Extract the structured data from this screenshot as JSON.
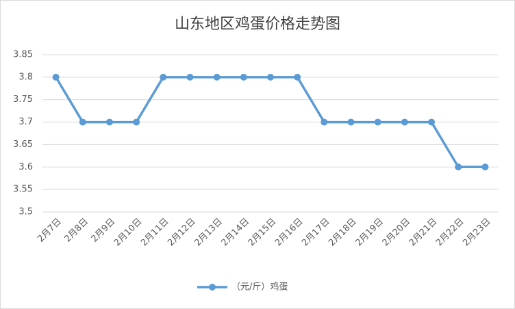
{
  "chart_data": {
    "type": "line",
    "title": "山东地区鸡蛋价格走势图",
    "categories": [
      "2月7日",
      "2月8日",
      "2月9日",
      "2月10日",
      "2月11日",
      "2月12日",
      "2月13日",
      "2月14日",
      "2月15日",
      "2月16日",
      "2月17日",
      "2月18日",
      "2月19日",
      "2月20日",
      "2月21日",
      "2月22日",
      "2月23日"
    ],
    "series": [
      {
        "name": "（元/斤）鸡蛋",
        "color": "#5b9bd5",
        "values": [
          3.8,
          3.7,
          3.7,
          3.7,
          3.8,
          3.8,
          3.8,
          3.8,
          3.8,
          3.8,
          3.7,
          3.7,
          3.7,
          3.7,
          3.7,
          3.6,
          3.6
        ]
      }
    ],
    "ylim": [
      3.5,
      3.85
    ],
    "yticks": [
      3.5,
      3.55,
      3.6,
      3.65,
      3.7,
      3.75,
      3.8,
      3.85
    ],
    "grid": true,
    "legend": "bottom"
  }
}
